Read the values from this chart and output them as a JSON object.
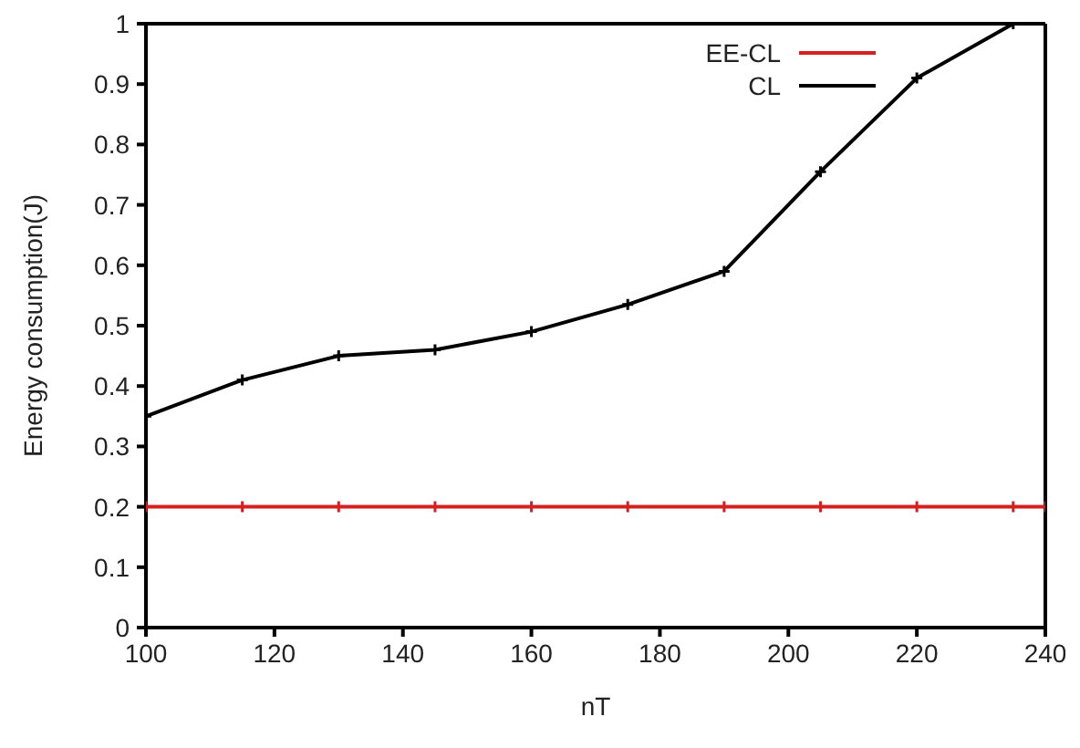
{
  "chart_data": {
    "type": "line",
    "xlabel": "nT",
    "ylabel": "Energy consumption(J)",
    "xlim": [
      100,
      240
    ],
    "xticks": [
      100,
      120,
      140,
      160,
      180,
      200,
      220,
      240
    ],
    "ylim": [
      0,
      1
    ],
    "yticks": [
      0,
      0.1,
      0.2,
      0.3,
      0.4,
      0.5,
      0.6,
      0.7,
      0.8,
      0.9,
      1
    ],
    "grid": false,
    "legend": "top right",
    "marker": "cross",
    "line_style": "solid",
    "series": [
      {
        "name": "EE-CL",
        "color": "#d62020",
        "x": [
          100,
          115,
          130,
          145,
          160,
          175,
          190,
          205,
          220,
          235,
          240
        ],
        "values": [
          0.2,
          0.2,
          0.2,
          0.2,
          0.2,
          0.2,
          0.2,
          0.2,
          0.2,
          0.2,
          0.2
        ]
      },
      {
        "name": "CL",
        "color": "#000000",
        "x": [
          100,
          115,
          130,
          145,
          160,
          175,
          190,
          205,
          220,
          235
        ],
        "values": [
          0.35,
          0.41,
          0.45,
          0.46,
          0.49,
          0.535,
          0.59,
          0.755,
          0.91,
          1.0
        ]
      }
    ]
  }
}
